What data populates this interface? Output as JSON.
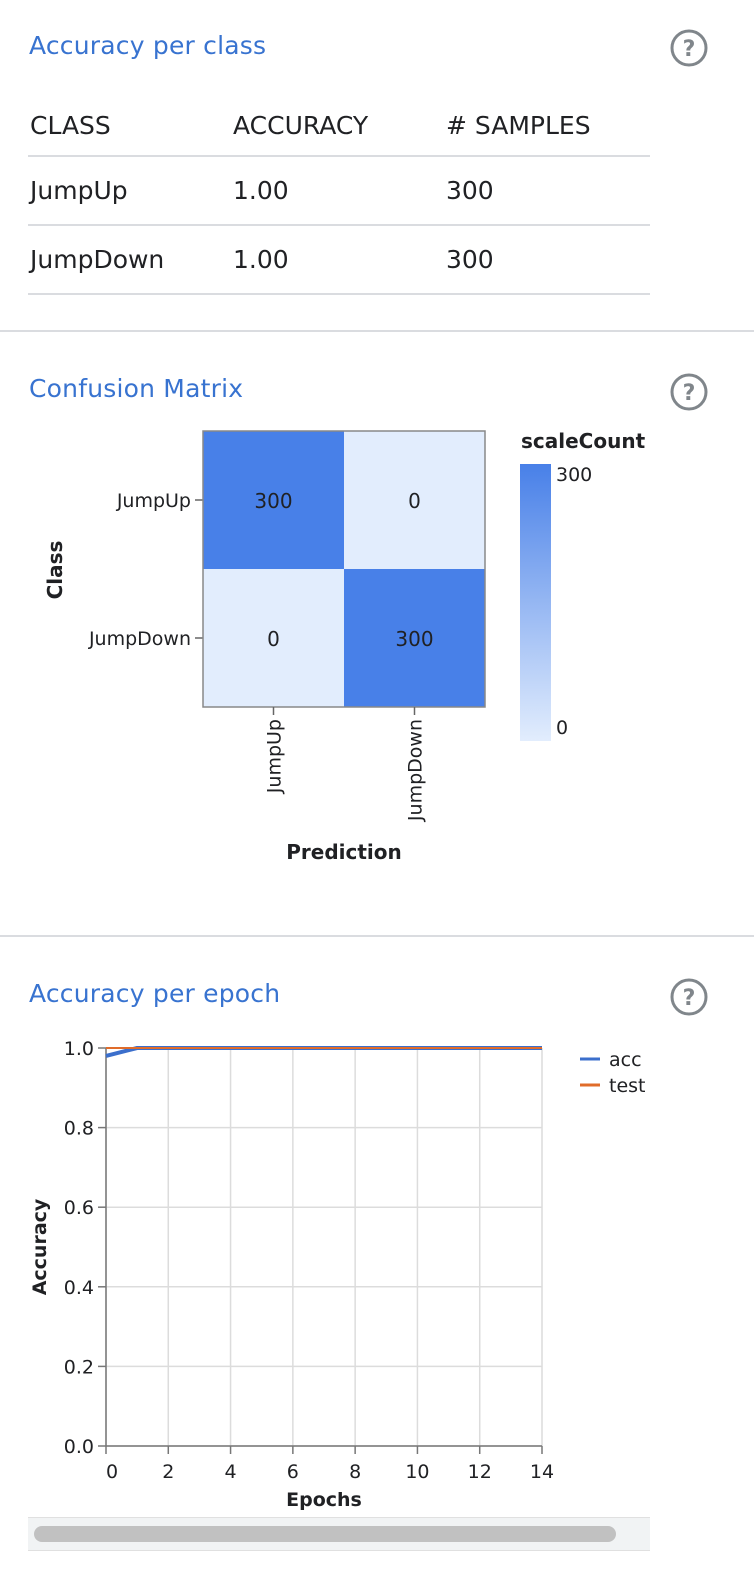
{
  "sections": {
    "accuracy_per_class": {
      "title": "Accuracy per class"
    },
    "confusion_matrix": {
      "title": "Confusion Matrix"
    },
    "accuracy_per_epoch": {
      "title": "Accuracy per epoch"
    }
  },
  "icons": {
    "help": "help-circle-icon"
  },
  "colors": {
    "accent": "#3873d0",
    "acc_line": "#3b6fcc",
    "test_line": "#e06c2a",
    "cell_high": "#4880e8",
    "cell_low": "#e2edfd"
  },
  "table": {
    "headers": [
      "CLASS",
      "ACCURACY",
      "# SAMPLES"
    ],
    "rows": [
      {
        "class": "JumpUp",
        "accuracy": "1.00",
        "samples": "300"
      },
      {
        "class": "JumpDown",
        "accuracy": "1.00",
        "samples": "300"
      }
    ]
  },
  "chart_data": [
    {
      "type": "heatmap",
      "rows": [
        "JumpUp",
        "JumpDown"
      ],
      "columns": [
        "JumpUp",
        "JumpDown"
      ],
      "values": [
        [
          300,
          0
        ],
        [
          0,
          300
        ]
      ],
      "xlabel": "Prediction",
      "ylabel": "Class",
      "legend": {
        "title": "scaleCount",
        "min": 0,
        "max": 300,
        "min_label": "0",
        "max_label": "300"
      }
    },
    {
      "type": "line",
      "xlabel": "Epochs",
      "ylabel": "Accuracy",
      "xlim": [
        0,
        14
      ],
      "ylim": [
        0,
        1
      ],
      "xticks": [
        "0",
        "2",
        "4",
        "6",
        "8",
        "10",
        "12",
        "14"
      ],
      "yticks": [
        "0.0",
        "0.2",
        "0.4",
        "0.6",
        "0.8",
        "1.0"
      ],
      "grid": true,
      "legend_position": "top-right",
      "series": [
        {
          "name": "acc",
          "x": [
            0,
            1,
            2,
            3,
            4,
            5,
            6,
            7,
            8,
            9,
            10,
            11,
            12,
            13,
            14
          ],
          "y": [
            0.98,
            1.0,
            1.0,
            1.0,
            1.0,
            1.0,
            1.0,
            1.0,
            1.0,
            1.0,
            1.0,
            1.0,
            1.0,
            1.0,
            1.0
          ]
        },
        {
          "name": "test",
          "x": [
            0,
            1,
            2,
            3,
            4,
            5,
            6,
            7,
            8,
            9,
            10,
            11,
            12,
            13,
            14
          ],
          "y": [
            1.0,
            1.0,
            1.0,
            1.0,
            1.0,
            1.0,
            1.0,
            1.0,
            1.0,
            1.0,
            1.0,
            1.0,
            1.0,
            1.0,
            1.0
          ]
        }
      ]
    }
  ]
}
